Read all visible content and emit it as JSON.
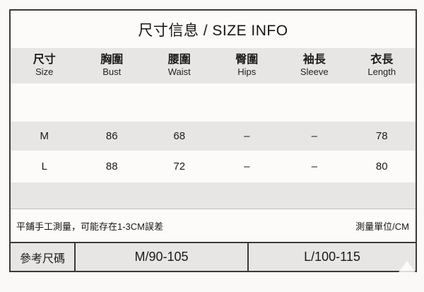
{
  "colors": {
    "border": "#3a3a3a",
    "band_gray": "#e7e6e4",
    "band_white": "#fcfbf9",
    "page_bg": "#faf9f7"
  },
  "table": {
    "title": "尺寸信息 / SIZE INFO",
    "columns": [
      {
        "zh": "尺寸",
        "en": "Size"
      },
      {
        "zh": "胸圍",
        "en": "Bust"
      },
      {
        "zh": "腰圍",
        "en": "Waist"
      },
      {
        "zh": "臀圍",
        "en": "Hips"
      },
      {
        "zh": "袖長",
        "en": "Sleeve"
      },
      {
        "zh": "衣長",
        "en": "Length"
      }
    ],
    "rows": [
      {
        "size": "M",
        "bust": "86",
        "waist": "68",
        "hips": "–",
        "sleeve": "–",
        "length": "78"
      },
      {
        "size": "L",
        "bust": "88",
        "waist": "72",
        "hips": "–",
        "sleeve": "–",
        "length": "80"
      }
    ],
    "note_left": "平鋪手工測量，可能存在1-3CM誤差",
    "note_right": "測量單位/CM",
    "reference": {
      "label": "參考尺碼",
      "m": "M/90-105",
      "l": "L/100-115"
    }
  }
}
